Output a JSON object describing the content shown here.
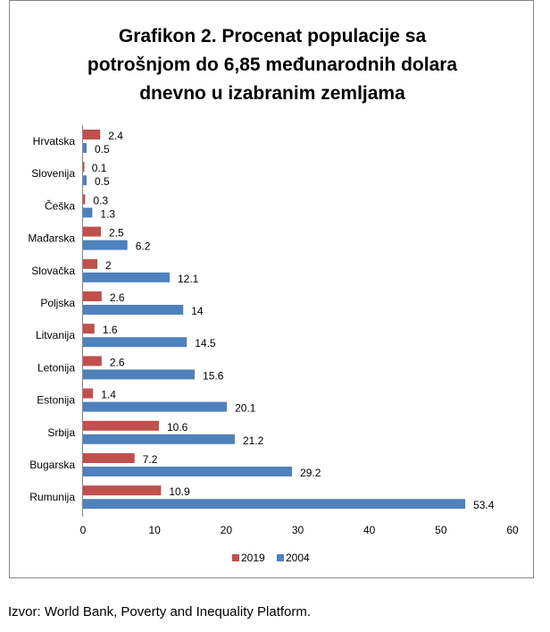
{
  "chart_data": {
    "type": "bar",
    "orientation": "horizontal",
    "title": "Grafikon 2. Procenat populacije sa potrošnjom do 6,85 međunarodnih dolara dnevno u izabranim zemljama",
    "title_lines": [
      "Grafikon 2. Procenat populacije sa",
      "potrošnjom do 6,85 međunarodnih dolara",
      "dnevno u izabranim zemljama"
    ],
    "categories": [
      "Hrvatska",
      "Slovenija",
      "Češka",
      "Mađarska",
      "Slovačka",
      "Poljska",
      "Litvanija",
      "Letonija",
      "Estonija",
      "Srbija",
      "Bugarska",
      "Rumunija"
    ],
    "series": [
      {
        "name": "2019",
        "color": "#C0504D",
        "values": [
          2.4,
          0.1,
          0.3,
          2.5,
          2,
          2.6,
          1.6,
          2.6,
          1.4,
          10.6,
          7.2,
          10.9
        ]
      },
      {
        "name": "2004",
        "color": "#4F81BD",
        "values": [
          0.5,
          0.5,
          1.3,
          6.2,
          12.1,
          14,
          14.5,
          15.6,
          20.1,
          21.2,
          29.2,
          53.4
        ]
      }
    ],
    "xlim": [
      0,
      60
    ],
    "xticks": [
      "0",
      "10",
      "20",
      "30",
      "40",
      "50",
      "60"
    ],
    "xlabel": "",
    "ylabel": "",
    "grid": false,
    "legend": "bottom"
  },
  "source": "Izvor: World Bank, Poverty and Inequality Platform."
}
